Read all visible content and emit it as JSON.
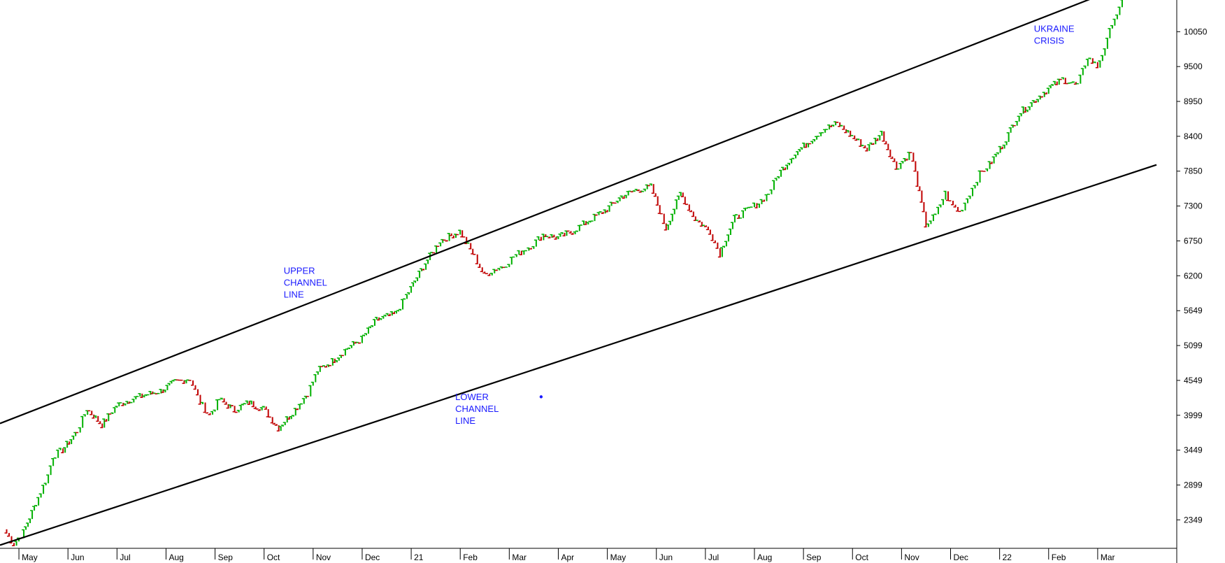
{
  "chart_data": {
    "type": "candlestick",
    "title": "",
    "xlabel": "",
    "ylabel": "",
    "grid": false,
    "colors": {
      "up": "#00b000",
      "down": "#c00000",
      "channel": "#000000",
      "annotation": "#1a1aff",
      "axis": "#000000"
    },
    "y_ticks": [
      "2349",
      "2899",
      "3449",
      "3999",
      "4549",
      "5099",
      "5649",
      "6200",
      "6750",
      "7300",
      "7850",
      "8400",
      "8950",
      "9500",
      "10050"
    ],
    "ylim": [
      1900,
      10550
    ],
    "x_ticks": [
      "May",
      "Jun",
      "Jul",
      "Aug",
      "Sep",
      "Oct",
      "Nov",
      "Dec",
      "21",
      "Feb",
      "Mar",
      "Apr",
      "May",
      "Jun",
      "Jul",
      "Aug",
      "Sep",
      "Oct",
      "Nov",
      "Dec",
      "22",
      "Feb",
      "Mar"
    ],
    "xlim": [
      0,
      23.3
    ],
    "series": [
      {
        "x": [
          0,
          0.2,
          0.4,
          0.7,
          0.9,
          1.0,
          1.2,
          1.5,
          1.7,
          2.0,
          2.3,
          2.6,
          2.9,
          3.2,
          3.5,
          3.8,
          4.0,
          4.2,
          4.4,
          4.7,
          5.0,
          5.3,
          5.6,
          5.9,
          6.2,
          6.4,
          6.7,
          7.0,
          7.3,
          7.6,
          8.0,
          8.3,
          8.6,
          8.9,
          9.3,
          9.6,
          9.8,
          10.0,
          10.2,
          10.4,
          10.6,
          10.8,
          11.0,
          11.3,
          11.6,
          12.0,
          12.3,
          12.6,
          12.9,
          13.2,
          13.5,
          13.8,
          14.1,
          14.4,
          14.6,
          14.9,
          15.2,
          15.4,
          15.6,
          15.8,
          16.1,
          16.4,
          16.7,
          17.0,
          17.3,
          17.6,
          17.9,
          18.2,
          18.5,
          18.8,
          19.0,
          19.2,
          19.3,
          19.5,
          19.7,
          19.9,
          20.1,
          20.4,
          20.7,
          21.0,
          21.3,
          21.6,
          21.9,
          22.1,
          22.3,
          22.5,
          22.6,
          22.75,
          22.85
        ],
        "close": [
          2200,
          1970,
          2150,
          2700,
          3050,
          3350,
          3450,
          3750,
          4100,
          3850,
          4150,
          4250,
          4320,
          4380,
          4520,
          4580,
          4200,
          4000,
          4250,
          4080,
          4200,
          4100,
          3800,
          4050,
          4350,
          4700,
          4850,
          5050,
          5200,
          5500,
          5600,
          6000,
          6400,
          6750,
          6900,
          6500,
          6200,
          6300,
          6350,
          6500,
          6600,
          6700,
          6850,
          6800,
          6900,
          7100,
          7250,
          7450,
          7550,
          7600,
          6950,
          7500,
          7100,
          6900,
          6550,
          7100,
          7250,
          7350,
          7500,
          7800,
          8100,
          8300,
          8500,
          8600,
          8400,
          8200,
          8450,
          7900,
          8150,
          7000,
          7150,
          7500,
          7350,
          7200,
          7500,
          7800,
          7950,
          8300,
          8750,
          8950,
          9150,
          9300,
          9200,
          9650,
          9500,
          9900,
          10200,
          10400,
          10600
        ]
      }
    ],
    "channels": [
      {
        "name": "UPPER CHANNEL LINE",
        "x": [
          0,
          22.2
        ],
        "y": [
          3870,
          10580
        ]
      },
      {
        "name": "LOWER CHANNEL LINE",
        "x": [
          0,
          23.5
        ],
        "y": [
          1950,
          7950
        ]
      }
    ],
    "annotations": [
      {
        "lines": [
          "UPPER",
          "CHANNEL",
          "LINE"
        ],
        "x": 5.7,
        "y": 6230
      },
      {
        "lines": [
          "LOWER",
          "CHANNEL",
          "LINE"
        ],
        "x": 9.2,
        "y": 4240
      },
      {
        "lines": [
          "UKRAINE",
          "CRISIS"
        ],
        "x": 21.0,
        "y": 10050
      }
    ],
    "markers": [
      {
        "x": 10.95,
        "y": 4290
      }
    ]
  }
}
